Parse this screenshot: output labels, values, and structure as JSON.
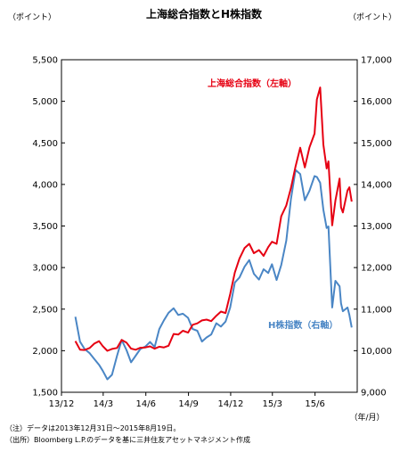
{
  "chart_data": {
    "type": "line",
    "title": "上海総合指数とH株指数",
    "left_unit": "（ポイント）",
    "right_unit": "（ポイント）",
    "x_unit": "（年/月）",
    "x_tick_labels": [
      "13/12",
      "14/3",
      "14/6",
      "14/9",
      "14/12",
      "15/3",
      "15/6"
    ],
    "x_ticks": [
      "2013-12-01",
      "2014-03-01",
      "2014-06-01",
      "2014-09-01",
      "2014-12-01",
      "2015-03-01",
      "2015-06-01"
    ],
    "xlim": [
      "2013-12-01",
      "2015-08-31"
    ],
    "y_left": {
      "ylim": [
        1500,
        5500
      ],
      "ticks": [
        "1,500",
        "2,000",
        "2,500",
        "3,000",
        "3,500",
        "4,000",
        "4,500",
        "5,000",
        "5,500"
      ]
    },
    "y_right": {
      "ylim": [
        9000,
        17000
      ],
      "ticks": [
        "9,000",
        "10,000",
        "11,000",
        "12,000",
        "13,000",
        "14,000",
        "15,000",
        "16,000",
        "17,000"
      ]
    },
    "grid": false,
    "series": [
      {
        "name": "上海総合指数（左軸）",
        "axis": "left",
        "color": "#e60012",
        "points": [
          [
            "2013-12-31",
            2116
          ],
          [
            "2014-01-10",
            2013
          ],
          [
            "2014-01-20",
            2008
          ],
          [
            "2014-01-31",
            2033
          ],
          [
            "2014-02-10",
            2085
          ],
          [
            "2014-02-20",
            2115
          ],
          [
            "2014-02-28",
            2056
          ],
          [
            "2014-03-10",
            1999
          ],
          [
            "2014-03-20",
            2021
          ],
          [
            "2014-03-31",
            2033
          ],
          [
            "2014-04-10",
            2130
          ],
          [
            "2014-04-20",
            2098
          ],
          [
            "2014-04-30",
            2026
          ],
          [
            "2014-05-10",
            2011
          ],
          [
            "2014-05-20",
            2035
          ],
          [
            "2014-05-31",
            2039
          ],
          [
            "2014-06-10",
            2052
          ],
          [
            "2014-06-20",
            2024
          ],
          [
            "2014-06-30",
            2048
          ],
          [
            "2014-07-10",
            2039
          ],
          [
            "2014-07-20",
            2060
          ],
          [
            "2014-07-31",
            2201
          ],
          [
            "2014-08-10",
            2194
          ],
          [
            "2014-08-20",
            2240
          ],
          [
            "2014-08-31",
            2217
          ],
          [
            "2014-09-10",
            2312
          ],
          [
            "2014-09-20",
            2329
          ],
          [
            "2014-09-30",
            2364
          ],
          [
            "2014-10-10",
            2374
          ],
          [
            "2014-10-20",
            2356
          ],
          [
            "2014-10-31",
            2420
          ],
          [
            "2014-11-10",
            2470
          ],
          [
            "2014-11-20",
            2452
          ],
          [
            "2014-11-30",
            2682
          ],
          [
            "2014-12-10",
            2940
          ],
          [
            "2014-12-20",
            3108
          ],
          [
            "2014-12-31",
            3234
          ],
          [
            "2015-01-10",
            3285
          ],
          [
            "2015-01-20",
            3173
          ],
          [
            "2015-01-31",
            3210
          ],
          [
            "2015-02-10",
            3141
          ],
          [
            "2015-02-20",
            3246
          ],
          [
            "2015-02-28",
            3310
          ],
          [
            "2015-03-10",
            3286
          ],
          [
            "2015-03-20",
            3617
          ],
          [
            "2015-03-31",
            3748
          ],
          [
            "2015-04-10",
            3957
          ],
          [
            "2015-04-20",
            4217
          ],
          [
            "2015-04-30",
            4442
          ],
          [
            "2015-05-10",
            4205
          ],
          [
            "2015-05-20",
            4446
          ],
          [
            "2015-05-31",
            4611
          ],
          [
            "2015-06-05",
            5023
          ],
          [
            "2015-06-12",
            5166
          ],
          [
            "2015-06-19",
            4478
          ],
          [
            "2015-06-26",
            4192
          ],
          [
            "2015-06-30",
            4277
          ],
          [
            "2015-07-08",
            3507
          ],
          [
            "2015-07-15",
            3805
          ],
          [
            "2015-07-24",
            4070
          ],
          [
            "2015-07-27",
            3725
          ],
          [
            "2015-07-31",
            3663
          ],
          [
            "2015-08-10",
            3928
          ],
          [
            "2015-08-14",
            3965
          ],
          [
            "2015-08-19",
            3794
          ]
        ]
      },
      {
        "name": "H株指数（右軸）",
        "axis": "right",
        "color": "#4a86c5",
        "points": [
          [
            "2013-12-31",
            10816
          ],
          [
            "2014-01-10",
            10218
          ],
          [
            "2014-01-20",
            10040
          ],
          [
            "2014-01-31",
            9940
          ],
          [
            "2014-02-10",
            9800
          ],
          [
            "2014-02-20",
            9660
          ],
          [
            "2014-02-28",
            9520
          ],
          [
            "2014-03-10",
            9310
          ],
          [
            "2014-03-20",
            9420
          ],
          [
            "2014-03-31",
            9880
          ],
          [
            "2014-04-10",
            10260
          ],
          [
            "2014-04-20",
            10020
          ],
          [
            "2014-04-30",
            9720
          ],
          [
            "2014-05-10",
            9880
          ],
          [
            "2014-05-20",
            10040
          ],
          [
            "2014-05-31",
            10100
          ],
          [
            "2014-06-10",
            10210
          ],
          [
            "2014-06-20",
            10090
          ],
          [
            "2014-06-30",
            10520
          ],
          [
            "2014-07-10",
            10730
          ],
          [
            "2014-07-20",
            10910
          ],
          [
            "2014-07-31",
            11020
          ],
          [
            "2014-08-10",
            10860
          ],
          [
            "2014-08-20",
            10890
          ],
          [
            "2014-08-31",
            10790
          ],
          [
            "2014-09-10",
            10520
          ],
          [
            "2014-09-20",
            10480
          ],
          [
            "2014-09-30",
            10220
          ],
          [
            "2014-10-10",
            10320
          ],
          [
            "2014-10-20",
            10390
          ],
          [
            "2014-10-31",
            10660
          ],
          [
            "2014-11-10",
            10580
          ],
          [
            "2014-11-20",
            10700
          ],
          [
            "2014-11-30",
            11040
          ],
          [
            "2014-12-10",
            11640
          ],
          [
            "2014-12-20",
            11760
          ],
          [
            "2014-12-31",
            12020
          ],
          [
            "2015-01-10",
            12180
          ],
          [
            "2015-01-20",
            11850
          ],
          [
            "2015-01-31",
            11710
          ],
          [
            "2015-02-10",
            11960
          ],
          [
            "2015-02-20",
            11870
          ],
          [
            "2015-02-28",
            12080
          ],
          [
            "2015-03-10",
            11700
          ],
          [
            "2015-03-20",
            12060
          ],
          [
            "2015-03-31",
            12650
          ],
          [
            "2015-04-10",
            13650
          ],
          [
            "2015-04-20",
            14350
          ],
          [
            "2015-04-30",
            14250
          ],
          [
            "2015-05-10",
            13620
          ],
          [
            "2015-05-20",
            13850
          ],
          [
            "2015-05-31",
            14200
          ],
          [
            "2015-06-05",
            14180
          ],
          [
            "2015-06-12",
            14040
          ],
          [
            "2015-06-19",
            13390
          ],
          [
            "2015-06-26",
            12950
          ],
          [
            "2015-06-30",
            12990
          ],
          [
            "2015-07-08",
            11040
          ],
          [
            "2015-07-15",
            11680
          ],
          [
            "2015-07-24",
            11550
          ],
          [
            "2015-07-27",
            11140
          ],
          [
            "2015-07-31",
            10950
          ],
          [
            "2015-08-10",
            11040
          ],
          [
            "2015-08-14",
            10860
          ],
          [
            "2015-08-19",
            10560
          ]
        ]
      }
    ]
  },
  "notes": {
    "note1": "（注）データは2013年12月31日～2015年8月19日。",
    "note2": "（出所）Bloomberg L.P.のデータを基に三井住友アセットマネジメント作成"
  }
}
